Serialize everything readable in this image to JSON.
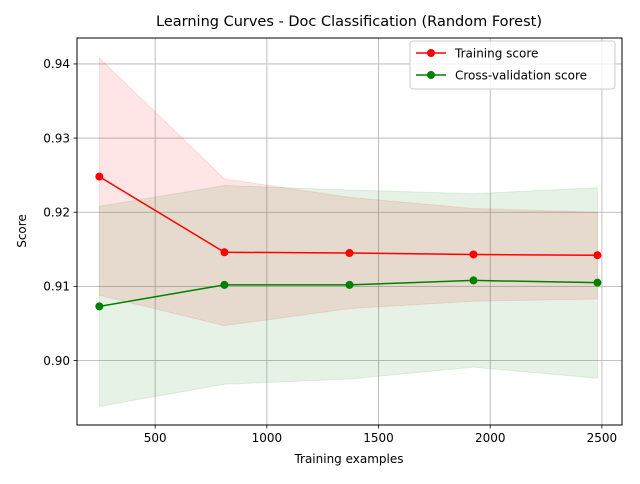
{
  "chart_data": {
    "type": "line",
    "title": "Learning Curves - Doc Classification (Random Forest)",
    "xlabel": "Training examples",
    "ylabel": "Score",
    "x": [
      250,
      810,
      1370,
      1925,
      2480
    ],
    "xlim": [
      150,
      2590
    ],
    "ylim": [
      0.8913,
      0.9435
    ],
    "xticks": [
      500,
      1000,
      1500,
      2000,
      2500
    ],
    "xtick_labels": [
      "500",
      "1000",
      "1500",
      "2000",
      "2500"
    ],
    "yticks": [
      0.9,
      0.91,
      0.92,
      0.93,
      0.94
    ],
    "ytick_labels": [
      "0.90",
      "0.91",
      "0.92",
      "0.93",
      "0.94"
    ],
    "grid": true,
    "legend_position": "top-right",
    "series": [
      {
        "name": "Training score",
        "color": "#ff0000",
        "band_color": "#ff0000",
        "values": [
          0.9248,
          0.9146,
          0.9145,
          0.9143,
          0.9142
        ],
        "band_upper": [
          0.9408,
          0.9245,
          0.922,
          0.9205,
          0.92
        ],
        "band_lower": [
          0.9088,
          0.9047,
          0.907,
          0.908,
          0.9083
        ]
      },
      {
        "name": "Cross-validation score",
        "color": "#008000",
        "band_color": "#008000",
        "values": [
          0.9073,
          0.9102,
          0.9102,
          0.9108,
          0.9105
        ],
        "band_upper": [
          0.9208,
          0.9236,
          0.923,
          0.9225,
          0.9233
        ],
        "band_lower": [
          0.8938,
          0.8968,
          0.8975,
          0.8991,
          0.8976
        ]
      }
    ]
  }
}
